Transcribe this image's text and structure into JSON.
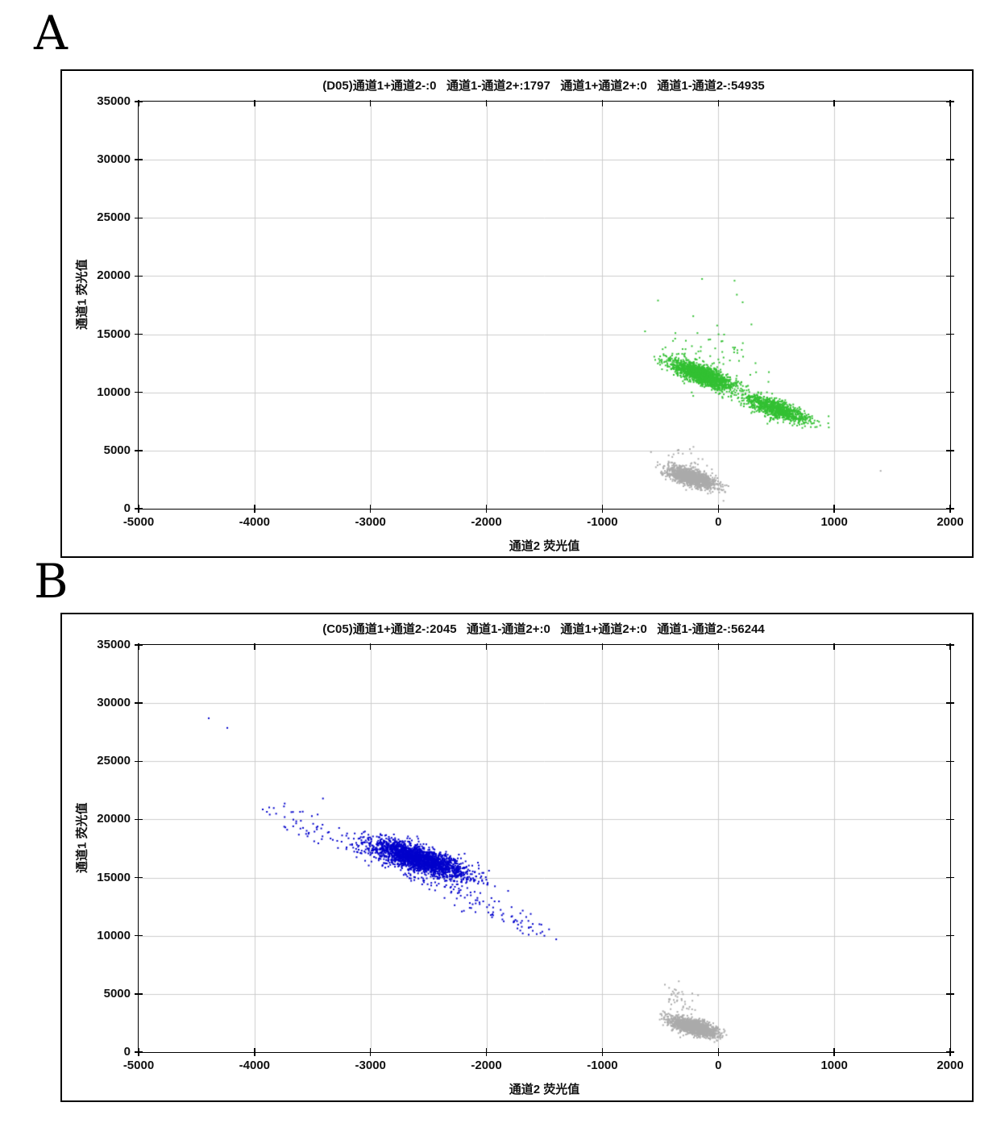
{
  "page": {
    "panel_a_letter": "A",
    "panel_b_letter": "B"
  },
  "colors": {
    "positive_green": "#33c033",
    "positive_blue": "#0000cc",
    "negative_gray": "#ababab",
    "grid": "#cccccc",
    "axis": "#000000",
    "background": "#ffffff"
  },
  "chart_data": [
    {
      "type": "scatter",
      "panel": "A",
      "well": "D05",
      "title": "(D05)通道1+通道2-:0   通道1-通道2+:1797   通道1+通道2+:0   通道1-通道2-:54935",
      "title_counts": {
        "ch1pos_ch2neg": 0,
        "ch1neg_ch2pos": 1797,
        "ch1pos_ch2pos": 0,
        "ch1neg_ch2neg": 54935
      },
      "xlabel": "通道2 荧光值",
      "ylabel": "通道1 荧光值",
      "xlim": [
        -5000,
        2000
      ],
      "ylim": [
        0,
        35000
      ],
      "xticks": [
        -5000,
        -4000,
        -3000,
        -2000,
        -1000,
        0,
        1000,
        2000
      ],
      "yticks": [
        0,
        5000,
        10000,
        15000,
        20000,
        25000,
        30000,
        35000
      ],
      "grid": true,
      "legend": "none",
      "clusters": [
        {
          "name": "green-positive-dense-upper",
          "color": "#33c033",
          "n": 1700,
          "center": [
            -140,
            11500
          ],
          "sx": 130,
          "slope": -3.6,
          "sy": 420
        },
        {
          "name": "green-positive-dense-lower",
          "color": "#33c033",
          "n": 1000,
          "center": [
            500,
            8560
          ],
          "sx": 140,
          "slope": -3.3,
          "sy": 380
        },
        {
          "name": "green-positive-sparse-halo",
          "color": "#33c033",
          "n": 70,
          "center": [
            -60,
            12600
          ],
          "sx": 260,
          "slope": -2.5,
          "sy": 1500
        },
        {
          "name": "gray-negative-droplets",
          "color": "#ababab",
          "n": 1600,
          "center": [
            -230,
            2650
          ],
          "sx": 100,
          "slope": -2.8,
          "sy": 330
        },
        {
          "name": "gray-negative-sparse-halo",
          "color": "#ababab",
          "n": 45,
          "center": [
            -280,
            3900
          ],
          "sx": 90,
          "slope": -2.0,
          "sy": 550
        }
      ],
      "outlier_points": [
        {
          "name": "green-outliers",
          "color": "#33c033",
          "points": [
            [
              -140,
              19750
            ],
            [
              140,
              19600
            ],
            [
              -520,
              17900
            ],
            [
              210,
              17750
            ],
            [
              -10,
              15750
            ],
            [
              -370,
              15100
            ],
            [
              -180,
              15100
            ],
            [
              50,
              14970
            ],
            [
              -70,
              14550
            ],
            [
              160,
              18400
            ]
          ]
        },
        {
          "name": "gray-outlier",
          "color": "#ababab",
          "points": [
            [
              1400,
              3250
            ]
          ]
        }
      ]
    },
    {
      "type": "scatter",
      "panel": "B",
      "well": "C05",
      "title": "(C05)通道1+通道2-:2045   通道1-通道2+:0   通道1+通道2+:0   通道1-通道2-:56244",
      "title_counts": {
        "ch1pos_ch2neg": 2045,
        "ch1neg_ch2pos": 0,
        "ch1pos_ch2pos": 0,
        "ch1neg_ch2neg": 56244
      },
      "xlabel": "通道2 荧光值",
      "ylabel": "通道1 荧光值",
      "xlim": [
        -5000,
        2000
      ],
      "ylim": [
        0,
        35000
      ],
      "xticks": [
        -5000,
        -4000,
        -3000,
        -2000,
        -1000,
        0,
        1000,
        2000
      ],
      "yticks": [
        0,
        5000,
        10000,
        15000,
        20000,
        25000,
        30000,
        35000
      ],
      "grid": true,
      "legend": "none",
      "clusters": [
        {
          "name": "blue-positive-dense-core",
          "color": "#0000cc",
          "n": 2300,
          "center": [
            -2580,
            16600
          ],
          "sx": 200,
          "slope": -3.0,
          "sy": 520
        },
        {
          "name": "blue-positive-diagonal-band",
          "color": "#0000cc",
          "n": 220,
          "from": [
            -3850,
            20800
          ],
          "to": [
            -1480,
            10100
          ],
          "noise": [
            80,
            450
          ]
        },
        {
          "name": "gray-negative-droplets",
          "color": "#ababab",
          "n": 1700,
          "center": [
            -215,
            2150
          ],
          "sx": 95,
          "slope": -2.6,
          "sy": 300
        },
        {
          "name": "gray-negative-sparse-halo",
          "color": "#ababab",
          "n": 40,
          "center": [
            -350,
            4300
          ],
          "sx": 70,
          "slope": -1.5,
          "sy": 550
        }
      ],
      "outlier_points": [
        {
          "name": "blue-outliers",
          "color": "#0000cc",
          "points": [
            [
              -4395,
              28700
            ],
            [
              -4235,
              27870
            ],
            [
              -3410,
              21800
            ],
            [
              -1500,
              10000
            ]
          ]
        },
        {
          "name": "gray-outliers",
          "color": "#ababab",
          "points": [
            [
              -424,
              5520
            ],
            [
              -368,
              4830
            ],
            [
              -312,
              5175
            ]
          ]
        }
      ]
    }
  ]
}
